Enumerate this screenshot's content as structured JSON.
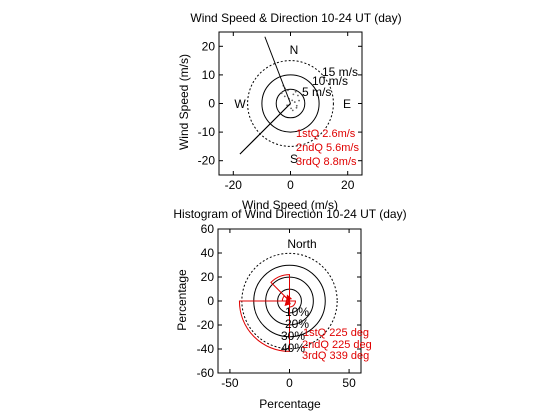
{
  "chart_data": [
    {
      "type": "polar-scatter",
      "title": "Wind Speed & Direction 10-24 UT (day)",
      "xlabel": "Wind Speed (m/s)",
      "ylabel": "Wind Speed (m/s)",
      "xlim": [
        -25,
        25
      ],
      "ylim": [
        -25,
        25
      ],
      "x_ticks": [
        -20,
        0,
        20
      ],
      "y_ticks": [
        20,
        10,
        0,
        -10,
        -20
      ],
      "x_tick_labels": [
        "-20",
        "0",
        "20"
      ],
      "y_tick_labels": [
        "20",
        "10",
        "0",
        "-10",
        "-20"
      ],
      "compass": {
        "n": "N",
        "e": "E",
        "s": "S",
        "w": "W"
      },
      "rings": [
        {
          "r": 5,
          "label": "5 m/s",
          "style": "solid"
        },
        {
          "r": 10,
          "label": "10 m/s",
          "style": "solid"
        },
        {
          "r": 15,
          "label": "15 m/s",
          "style": "dotted"
        }
      ],
      "quartile_lines": [
        {
          "angle_deg": 225,
          "speed": 2.6
        },
        {
          "angle_deg": 225,
          "speed": 5.6
        },
        {
          "angle_deg": 339,
          "speed": 8.8
        }
      ],
      "scatter_points": [
        [
          1.5,
          0.5
        ],
        [
          2.2,
          -0.8
        ],
        [
          -0.5,
          1.6
        ],
        [
          3.0,
          1.0
        ],
        [
          -2.0,
          2.5
        ],
        [
          1.0,
          3.2
        ],
        [
          0.2,
          -1.7
        ],
        [
          -1.2,
          -0.6
        ],
        [
          2.6,
          2.8
        ],
        [
          -3.1,
          3.6
        ],
        [
          0.8,
          -2.4
        ],
        [
          -0.9,
          4.6
        ],
        [
          1.8,
          4.1
        ],
        [
          -1.9,
          5.3
        ],
        [
          0.6,
          1.1
        ],
        [
          -0.3,
          -0.4
        ],
        [
          2.1,
          -1.5
        ],
        [
          -2.5,
          6.2
        ]
      ],
      "annotations": [
        "1stQ 2.6m/s",
        "2ndQ 5.6m/s",
        "3rdQ 8.8m/s"
      ]
    },
    {
      "type": "polar-histogram",
      "title": "Histogram of Wind Direction 10-24 UT (day)",
      "xlabel": "Percentage",
      "ylabel": "Percentage",
      "xlim": [
        -60,
        60
      ],
      "ylim": [
        -60,
        60
      ],
      "x_ticks": [
        -50,
        0,
        50
      ],
      "y_ticks": [
        60,
        40,
        20,
        0,
        -20,
        -40,
        -60
      ],
      "x_tick_labels": [
        "-50",
        "0",
        "50"
      ],
      "y_tick_labels": [
        "60",
        "40",
        "20",
        "0",
        "-20",
        "-40",
        "-60"
      ],
      "north_label": "North",
      "rings": [
        {
          "r": 10,
          "label": "10%",
          "style": "solid"
        },
        {
          "r": 20,
          "label": "20%",
          "style": "solid"
        },
        {
          "r": 30,
          "label": "30%",
          "style": "solid"
        },
        {
          "r": 40,
          "label": "40%",
          "style": "dotted"
        }
      ],
      "bins": [
        {
          "from": 180,
          "to": 270,
          "pct": 42
        },
        {
          "from": 270,
          "to": 315,
          "pct": 6
        },
        {
          "from": 315,
          "to": 360,
          "pct": 22
        },
        {
          "from": 90,
          "to": 180,
          "pct": 5
        }
      ],
      "quartile_arrows": [
        {
          "angle_deg": 225,
          "len": 4.5
        },
        {
          "angle_deg": 225,
          "len": 4.5
        },
        {
          "angle_deg": 339,
          "len": 4.5
        }
      ],
      "annotations": [
        "1stQ 225 deg",
        "2ndQ 225 deg",
        "3rdQ 339 deg"
      ]
    }
  ]
}
